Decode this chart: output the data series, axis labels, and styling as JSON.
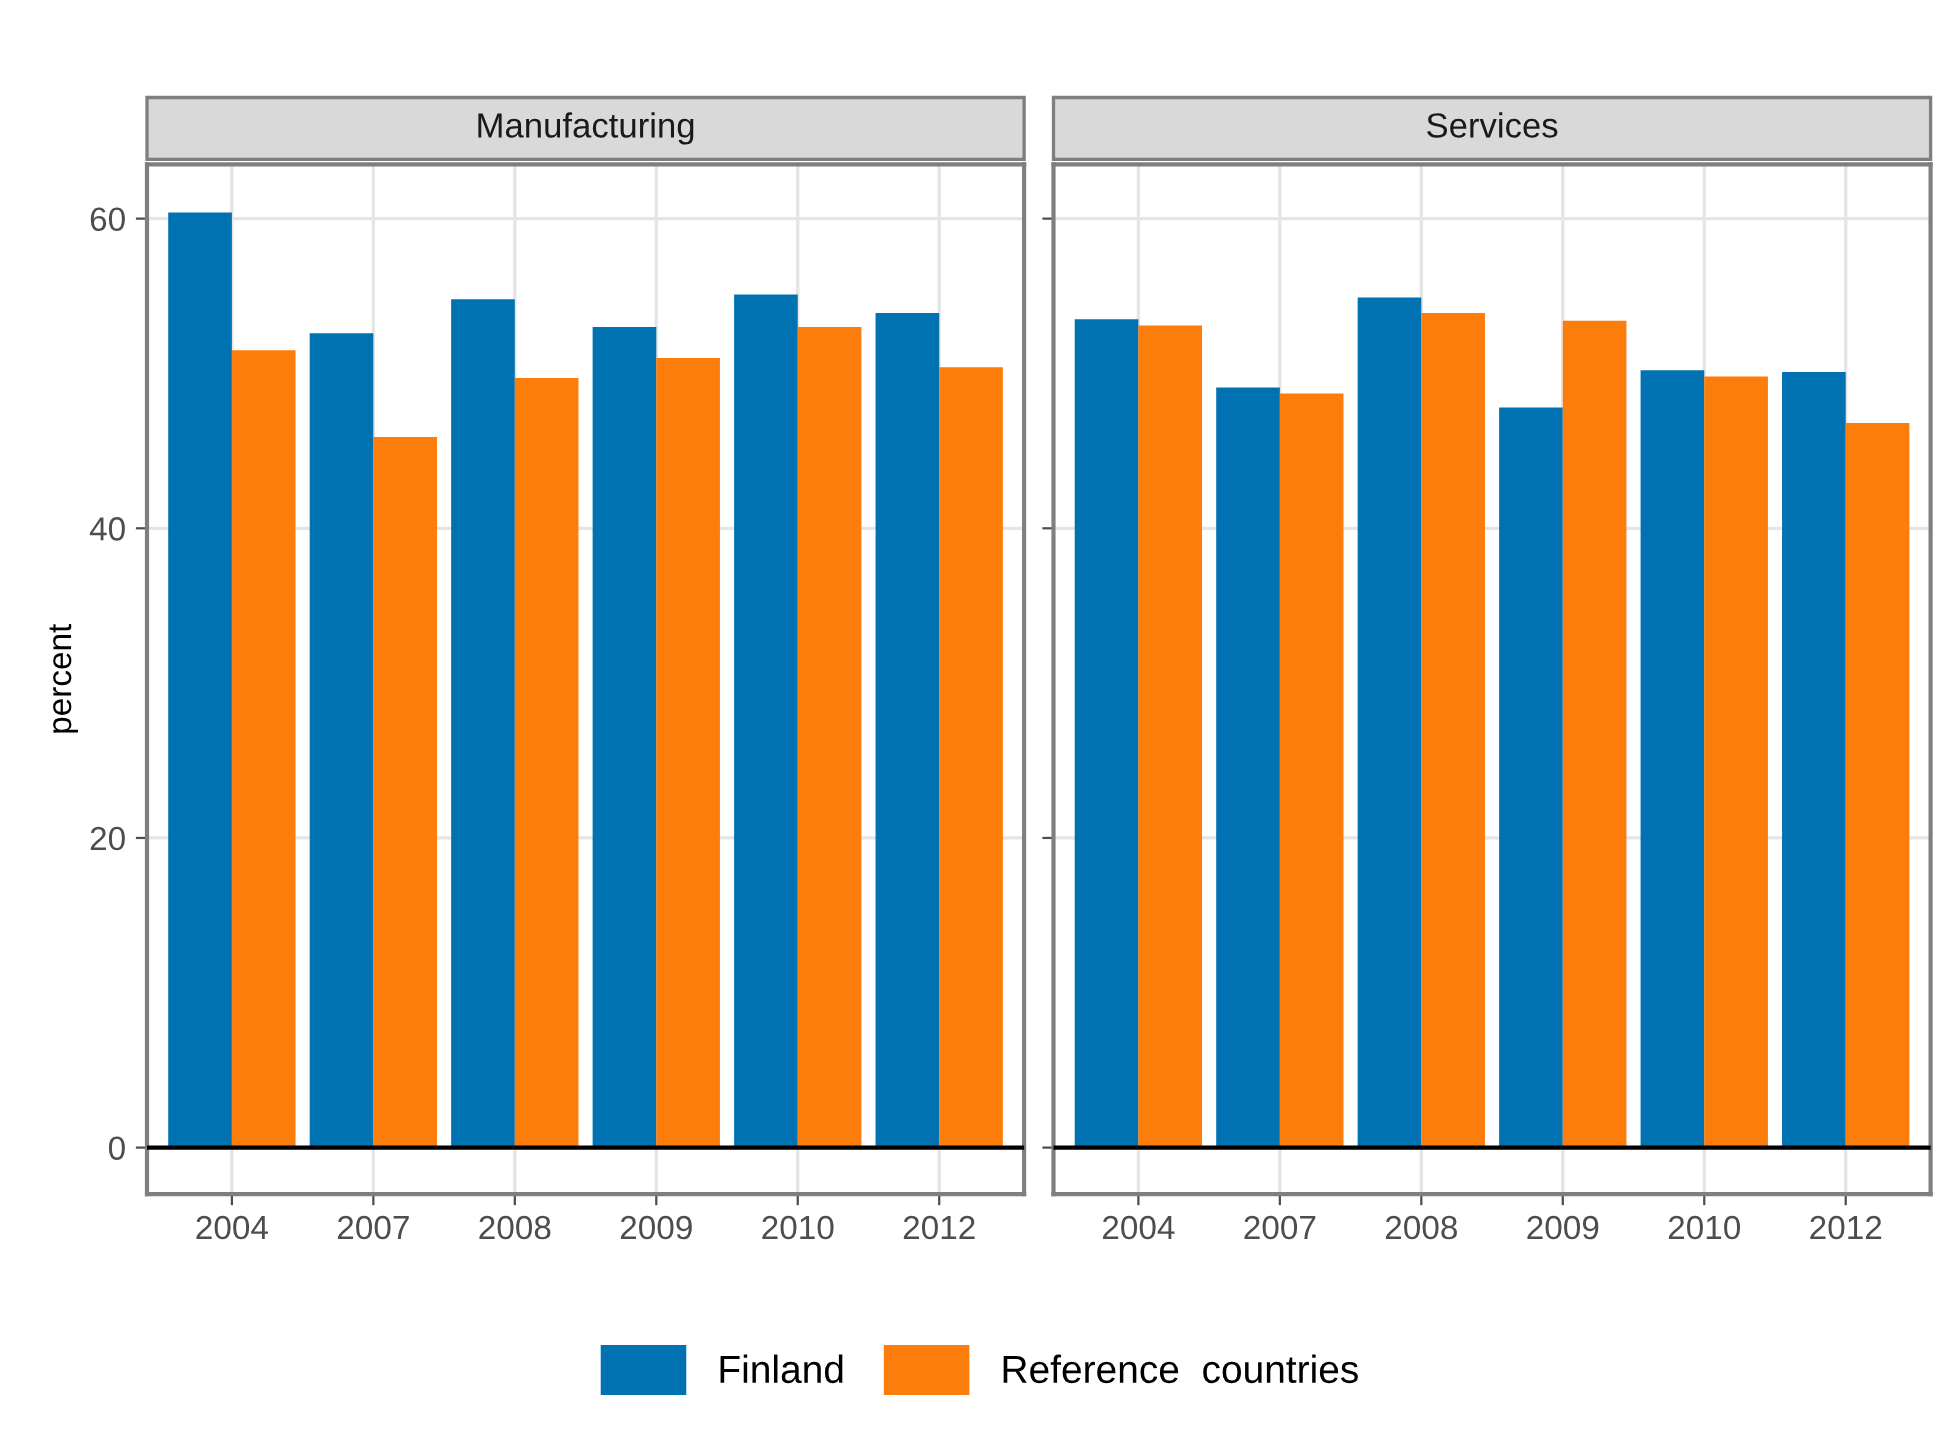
{
  "chart_data": [
    {
      "type": "bar",
      "title": "Manufacturing",
      "ylabel": "percent",
      "categories": [
        "2004",
        "2007",
        "2008",
        "2009",
        "2010",
        "2012"
      ],
      "series": [
        {
          "name": "Finland",
          "color": "#0072b2",
          "values": [
            60.4,
            52.6,
            54.8,
            53.0,
            55.1,
            53.9
          ]
        },
        {
          "name": "Reference  countries",
          "color": "#fc7d0b",
          "values": [
            51.5,
            45.9,
            49.7,
            51.0,
            53.0,
            50.4
          ]
        }
      ],
      "ylim": [
        -3,
        63.5
      ],
      "yticks": [
        0,
        20,
        40,
        60
      ],
      "grid": true,
      "legend": "bottom",
      "ref_lines": [
        {
          "axis": "y",
          "value": 0,
          "color": "#000000"
        }
      ]
    },
    {
      "type": "bar",
      "title": "Services",
      "categories": [
        "2004",
        "2007",
        "2008",
        "2009",
        "2010",
        "2012"
      ],
      "series": [
        {
          "name": "Finland",
          "color": "#0072b2",
          "values": [
            53.5,
            49.1,
            54.9,
            47.8,
            50.2,
            50.1
          ]
        },
        {
          "name": "Reference  countries",
          "color": "#fc7d0b",
          "values": [
            53.1,
            48.7,
            53.9,
            53.4,
            49.8,
            46.8
          ]
        }
      ],
      "ylim": [
        -3,
        63.5
      ],
      "yticks": [
        0,
        20,
        40,
        60
      ],
      "grid": true,
      "tick_labels": "x",
      "ref_lines": [
        {
          "axis": "y",
          "value": 0,
          "color": "#000000"
        }
      ]
    }
  ]
}
